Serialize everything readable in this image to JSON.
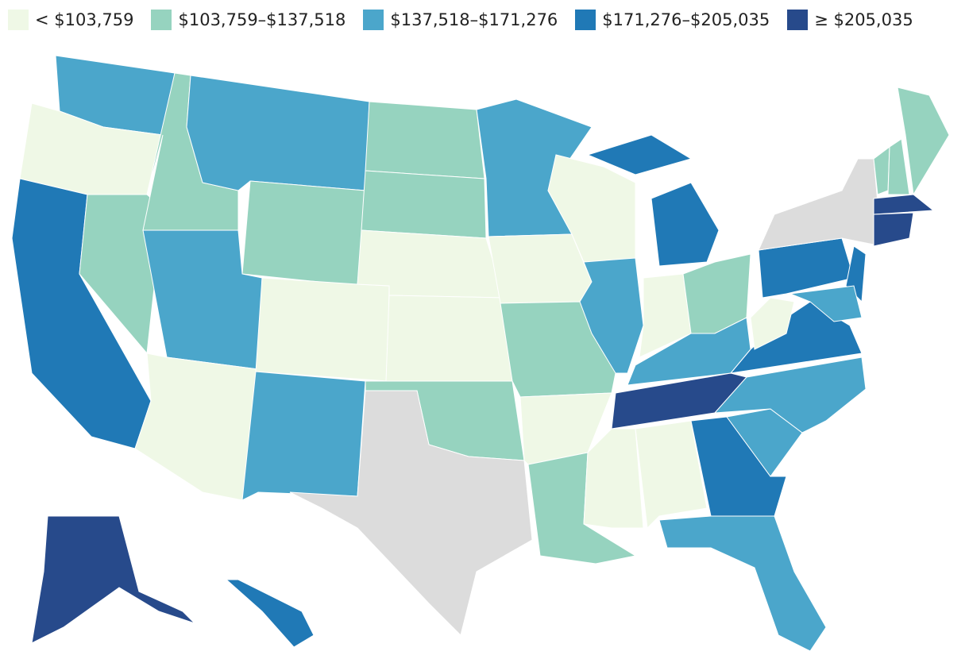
{
  "legend": [
    {
      "label": "< $103,759",
      "color": "#eff8e6"
    },
    {
      "label": "$103,759–$137,518",
      "color": "#96d3bf"
    },
    {
      "label": "$137,518–$171,276",
      "color": "#4ba6cb"
    },
    {
      "label": "$171,276–$205,035",
      "color": "#2079b6"
    },
    {
      "label": "≥ $205,035",
      "color": "#274a8b"
    }
  ],
  "no_data_color": "#dcdcdc",
  "states": [
    2,
    0,
    3,
    1,
    1,
    2,
    1,
    2,
    0,
    0,
    2,
    1,
    1,
    0,
    0,
    1,
    null,
    2,
    0,
    1,
    0,
    1,
    0,
    2,
    3,
    3,
    0,
    1,
    2,
    4,
    0,
    0,
    3,
    2,
    2,
    2,
    3,
    0,
    3,
    null,
    3,
    2,
    1,
    1,
    1,
    4,
    4,
    4,
    3
  ]
}
